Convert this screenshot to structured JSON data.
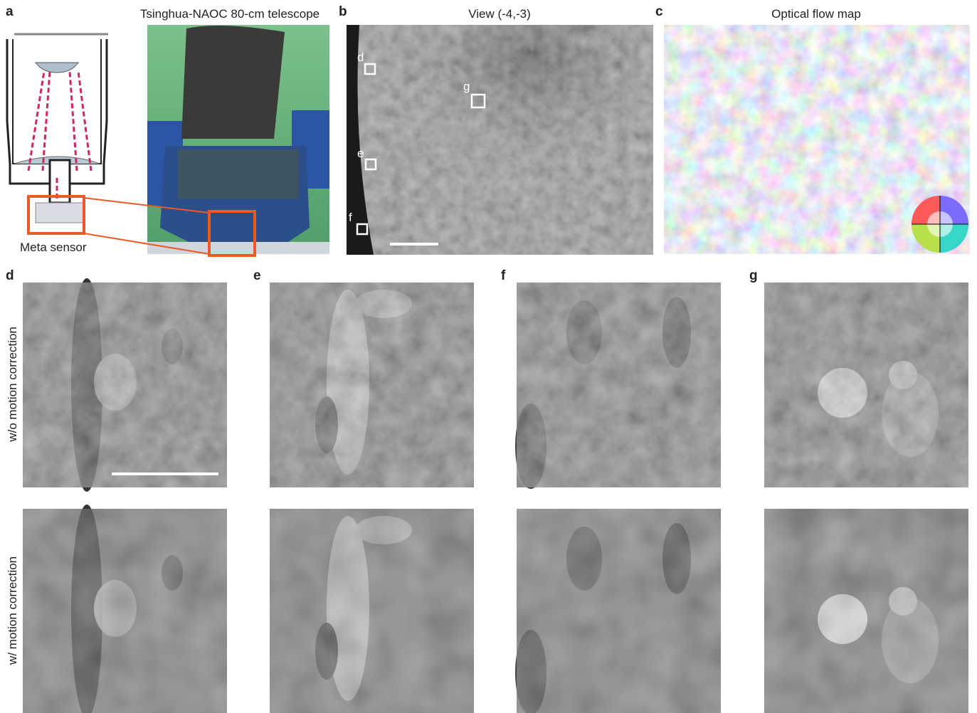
{
  "panels": [
    {
      "letter": "a",
      "title": "Tsinghua-NAOC 80-cm telescope",
      "caption": "Meta sensor"
    },
    {
      "letter": "b",
      "title": "View (-4,-3)",
      "box_labels": [
        "d",
        "g",
        "e",
        "f"
      ]
    },
    {
      "letter": "c",
      "title": "Optical flow map"
    },
    {
      "letter": "d"
    },
    {
      "letter": "e"
    },
    {
      "letter": "f"
    },
    {
      "letter": "g"
    }
  ],
  "row_labels": [
    "w/o motion correction",
    "w/ motion correction"
  ]
}
